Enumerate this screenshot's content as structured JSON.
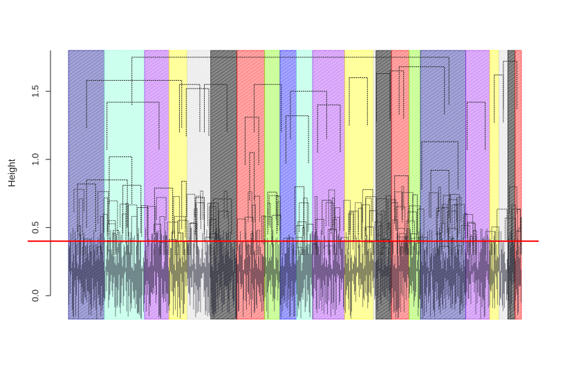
{
  "chart_data": {
    "type": "dendrogram",
    "ylabel": "Height",
    "ylim": [
      0,
      1.8
    ],
    "y_ticks": [
      {
        "value": 0.0,
        "label": "0.0"
      },
      {
        "value": 0.5,
        "label": "0.5"
      },
      {
        "value": 1.0,
        "label": "1.0"
      },
      {
        "value": 1.5,
        "label": "1.5"
      }
    ],
    "cut_height": 0.4,
    "cut_line_color": "#ff0000",
    "leaf_count": 650,
    "cluster_rects": [
      {
        "start": 0.0,
        "end": 0.079,
        "color": "#00008b"
      },
      {
        "start": 0.079,
        "end": 0.168,
        "color": "#7fffd4"
      },
      {
        "start": 0.168,
        "end": 0.222,
        "color": "#a020f0"
      },
      {
        "start": 0.222,
        "end": 0.262,
        "color": "#ffff00"
      },
      {
        "start": 0.262,
        "end": 0.314,
        "color": "#d3d3d3"
      },
      {
        "start": 0.314,
        "end": 0.372,
        "color": "#000000"
      },
      {
        "start": 0.372,
        "end": 0.433,
        "color": "#ff0000"
      },
      {
        "start": 0.433,
        "end": 0.467,
        "color": "#7cfc00"
      },
      {
        "start": 0.467,
        "end": 0.503,
        "color": "#0000ff"
      },
      {
        "start": 0.503,
        "end": 0.539,
        "color": "#7fffd4"
      },
      {
        "start": 0.539,
        "end": 0.61,
        "color": "#a020f0"
      },
      {
        "start": 0.61,
        "end": 0.673,
        "color": "#ffff00"
      },
      {
        "start": 0.673,
        "end": 0.679,
        "color": "#d3d3d3"
      },
      {
        "start": 0.679,
        "end": 0.713,
        "color": "#000000"
      },
      {
        "start": 0.713,
        "end": 0.752,
        "color": "#ff0000"
      },
      {
        "start": 0.752,
        "end": 0.777,
        "color": "#7cfc00"
      },
      {
        "start": 0.777,
        "end": 0.877,
        "color": "#00008b"
      },
      {
        "start": 0.877,
        "end": 0.93,
        "color": "#a020f0"
      },
      {
        "start": 0.93,
        "end": 0.95,
        "color": "#ffff00"
      },
      {
        "start": 0.95,
        "end": 0.97,
        "color": "#d3d3d3"
      },
      {
        "start": 0.97,
        "end": 0.986,
        "color": "#000000"
      },
      {
        "start": 0.986,
        "end": 1.0,
        "color": "#ff0000"
      }
    ],
    "merges": [
      {
        "left": 0.04,
        "right": 0.13,
        "height": 0.85
      },
      {
        "left": 0.02,
        "right": 0.06,
        "height": 0.82
      },
      {
        "left": 0.12,
        "right": 0.16,
        "height": 0.81
      },
      {
        "left": 0.09,
        "right": 0.14,
        "height": 1.02
      },
      {
        "left": 0.085,
        "right": 0.2,
        "height": 1.42
      },
      {
        "left": 0.04,
        "right": 0.25,
        "height": 1.58
      },
      {
        "left": 0.19,
        "right": 0.23,
        "height": 0.79
      },
      {
        "left": 0.245,
        "right": 0.29,
        "height": 1.55
      },
      {
        "left": 0.25,
        "right": 0.26,
        "height": 0.84
      },
      {
        "left": 0.28,
        "right": 0.3,
        "height": 0.72
      },
      {
        "left": 0.26,
        "right": 0.31,
        "height": 1.52
      },
      {
        "left": 0.32,
        "right": 0.36,
        "height": 0.71
      },
      {
        "left": 0.3,
        "right": 0.35,
        "height": 1.55
      },
      {
        "left": 0.39,
        "right": 0.42,
        "height": 1.31
      },
      {
        "left": 0.4,
        "right": 0.41,
        "height": 1.05
      },
      {
        "left": 0.41,
        "right": 0.47,
        "height": 1.55
      },
      {
        "left": 0.44,
        "right": 0.46,
        "height": 0.76
      },
      {
        "left": 0.48,
        "right": 0.53,
        "height": 1.32
      },
      {
        "left": 0.5,
        "right": 0.52,
        "height": 0.8
      },
      {
        "left": 0.55,
        "right": 0.6,
        "height": 1.4
      },
      {
        "left": 0.56,
        "right": 0.58,
        "height": 0.7
      },
      {
        "left": 0.49,
        "right": 0.57,
        "height": 1.5
      },
      {
        "left": 0.62,
        "right": 0.66,
        "height": 1.6
      },
      {
        "left": 0.62,
        "right": 0.64,
        "height": 0.62
      },
      {
        "left": 0.68,
        "right": 0.71,
        "height": 1.63
      },
      {
        "left": 0.72,
        "right": 0.75,
        "height": 0.88
      },
      {
        "left": 0.71,
        "right": 0.74,
        "height": 1.65
      },
      {
        "left": 0.76,
        "right": 0.77,
        "height": 0.74
      },
      {
        "left": 0.78,
        "right": 0.86,
        "height": 1.13
      },
      {
        "left": 0.8,
        "right": 0.84,
        "height": 0.92
      },
      {
        "left": 0.73,
        "right": 0.83,
        "height": 1.68
      },
      {
        "left": 0.88,
        "right": 0.92,
        "height": 1.42
      },
      {
        "left": 0.94,
        "right": 0.96,
        "height": 1.62
      },
      {
        "left": 0.96,
        "right": 0.99,
        "height": 1.72
      },
      {
        "left": 0.14,
        "right": 0.84,
        "height": 1.75
      }
    ]
  }
}
